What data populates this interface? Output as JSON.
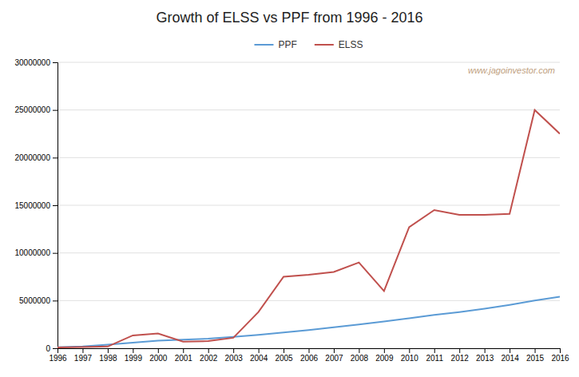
{
  "chart_data": {
    "type": "line",
    "title": "Growth of ELSS vs PPF from 1996 - 2016",
    "x": [
      1996,
      1997,
      1998,
      1999,
      2000,
      2001,
      2002,
      2003,
      2004,
      2005,
      2006,
      2007,
      2008,
      2009,
      2010,
      2011,
      2012,
      2013,
      2014,
      2015,
      2016
    ],
    "series": [
      {
        "name": "PPF",
        "color": "#5B9BD5",
        "values": [
          100000,
          180000,
          380000,
          580000,
          800000,
          900000,
          1000000,
          1200000,
          1400000,
          1650000,
          1900000,
          2200000,
          2500000,
          2800000,
          3150000,
          3500000,
          3800000,
          4150000,
          4550000,
          5000000,
          5400000
        ]
      },
      {
        "name": "ELSS",
        "color": "#C0504D",
        "values": [
          80000,
          120000,
          180000,
          1350000,
          1550000,
          700000,
          750000,
          1100000,
          3800000,
          7500000,
          7700000,
          8000000,
          9000000,
          6000000,
          12700000,
          14500000,
          14000000,
          14000000,
          14100000,
          25000000,
          22500000
        ]
      }
    ],
    "xlim": [
      1996,
      2016
    ],
    "xticks": [
      1996,
      1997,
      1998,
      1999,
      2000,
      2001,
      2002,
      2003,
      2004,
      2005,
      2006,
      2007,
      2008,
      2009,
      2010,
      2011,
      2012,
      2013,
      2014,
      2015,
      2016
    ],
    "ylim": [
      0,
      30000000
    ],
    "yticks": [
      0,
      5000000,
      10000000,
      15000000,
      20000000,
      25000000,
      30000000
    ],
    "grid": true,
    "legend": "top",
    "annotations": [
      {
        "text": "www.jagoinvestor.com",
        "color": "#C0A080"
      }
    ]
  }
}
